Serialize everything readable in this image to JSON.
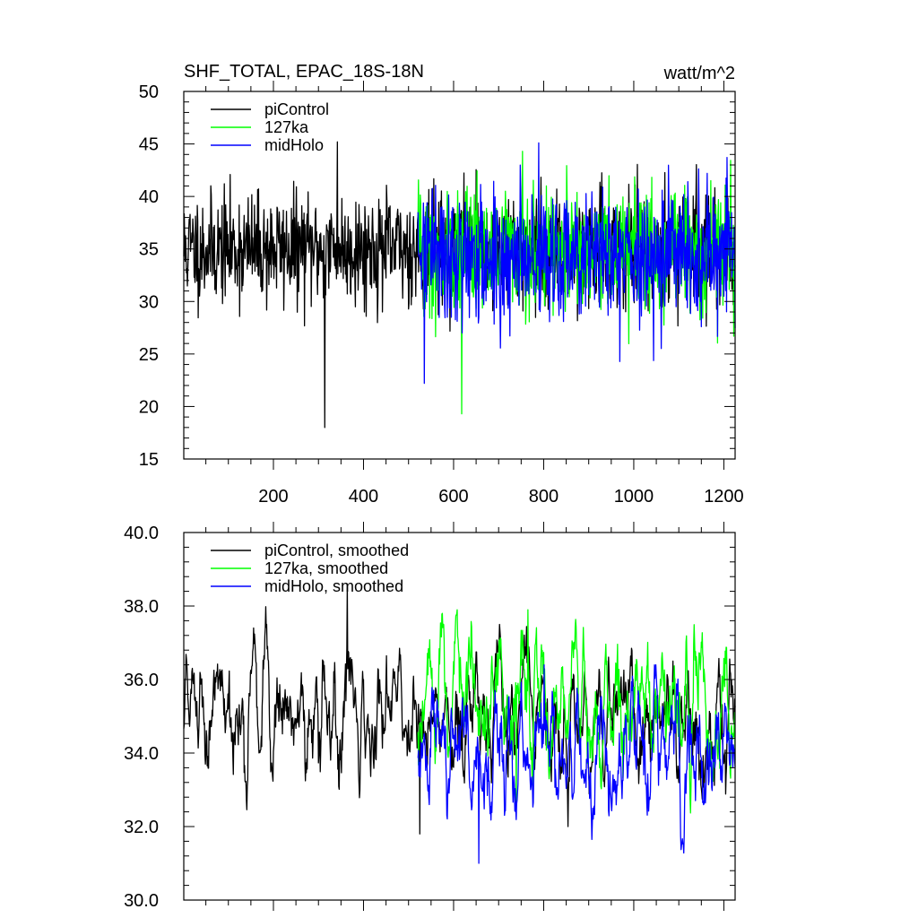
{
  "chart_data": [
    {
      "type": "line",
      "title": "SHF_TOTAL, EPAC_18S-18N",
      "units": "watt/m^2",
      "xlim": [
        1,
        1225
      ],
      "ylim": [
        15,
        50
      ],
      "yticks": [
        15,
        20,
        25,
        30,
        35,
        40,
        45,
        50
      ],
      "ytick_labels": [
        "15",
        "20",
        "25",
        "30",
        "35",
        "40",
        "45",
        "50"
      ],
      "xticks": [
        200,
        400,
        600,
        800,
        1000,
        1200
      ],
      "xtick_labels": [
        "200",
        "400",
        "600",
        "800",
        "1000",
        "1200"
      ],
      "legend_position": "top-left",
      "series": [
        {
          "name": "piControl",
          "color": "#000000",
          "x_start": 1,
          "x_end": 1225,
          "mean": 35.0,
          "spread": 2.6,
          "min": 18.0,
          "max": 45.2,
          "smoothed": false
        },
        {
          "name": "127ka",
          "color": "#00ff00",
          "x_start": 521,
          "x_end": 1225,
          "mean": 35.0,
          "spread": 3.0,
          "min": 19.3,
          "max": 44.3,
          "smoothed": false
        },
        {
          "name": "midHolo",
          "color": "#0000ff",
          "x_start": 521,
          "x_end": 1225,
          "mean": 34.4,
          "spread": 2.9,
          "min": 22.2,
          "max": 45.1,
          "smoothed": false
        }
      ]
    },
    {
      "type": "line",
      "title": "",
      "units": "",
      "xlim": [
        1,
        1225
      ],
      "ylim": [
        30,
        40
      ],
      "yticks": [
        30,
        32,
        34,
        36,
        38,
        40
      ],
      "ytick_labels": [
        "30.0",
        "32.0",
        "34.0",
        "36.0",
        "38.0",
        "40.0"
      ],
      "xticks": [
        200,
        400,
        600,
        800,
        1000,
        1200
      ],
      "xtick_labels": [],
      "legend_position": "top-left",
      "series": [
        {
          "name": "piControl, smoothed",
          "color": "#000000",
          "x_start": 1,
          "x_end": 1225,
          "mean": 35.0,
          "spread": 0.9,
          "min": 31.8,
          "max": 38.6,
          "smoothed": true
        },
        {
          "name": "127ka, smoothed",
          "color": "#00ff00",
          "x_start": 521,
          "x_end": 1225,
          "mean": 35.4,
          "spread": 1.0,
          "min": 32.3,
          "max": 37.9,
          "smoothed": true
        },
        {
          "name": "midHolo, smoothed",
          "color": "#0000ff",
          "x_start": 521,
          "x_end": 1225,
          "mean": 34.0,
          "spread": 0.9,
          "min": 31.0,
          "max": 36.4,
          "smoothed": true
        }
      ]
    }
  ]
}
